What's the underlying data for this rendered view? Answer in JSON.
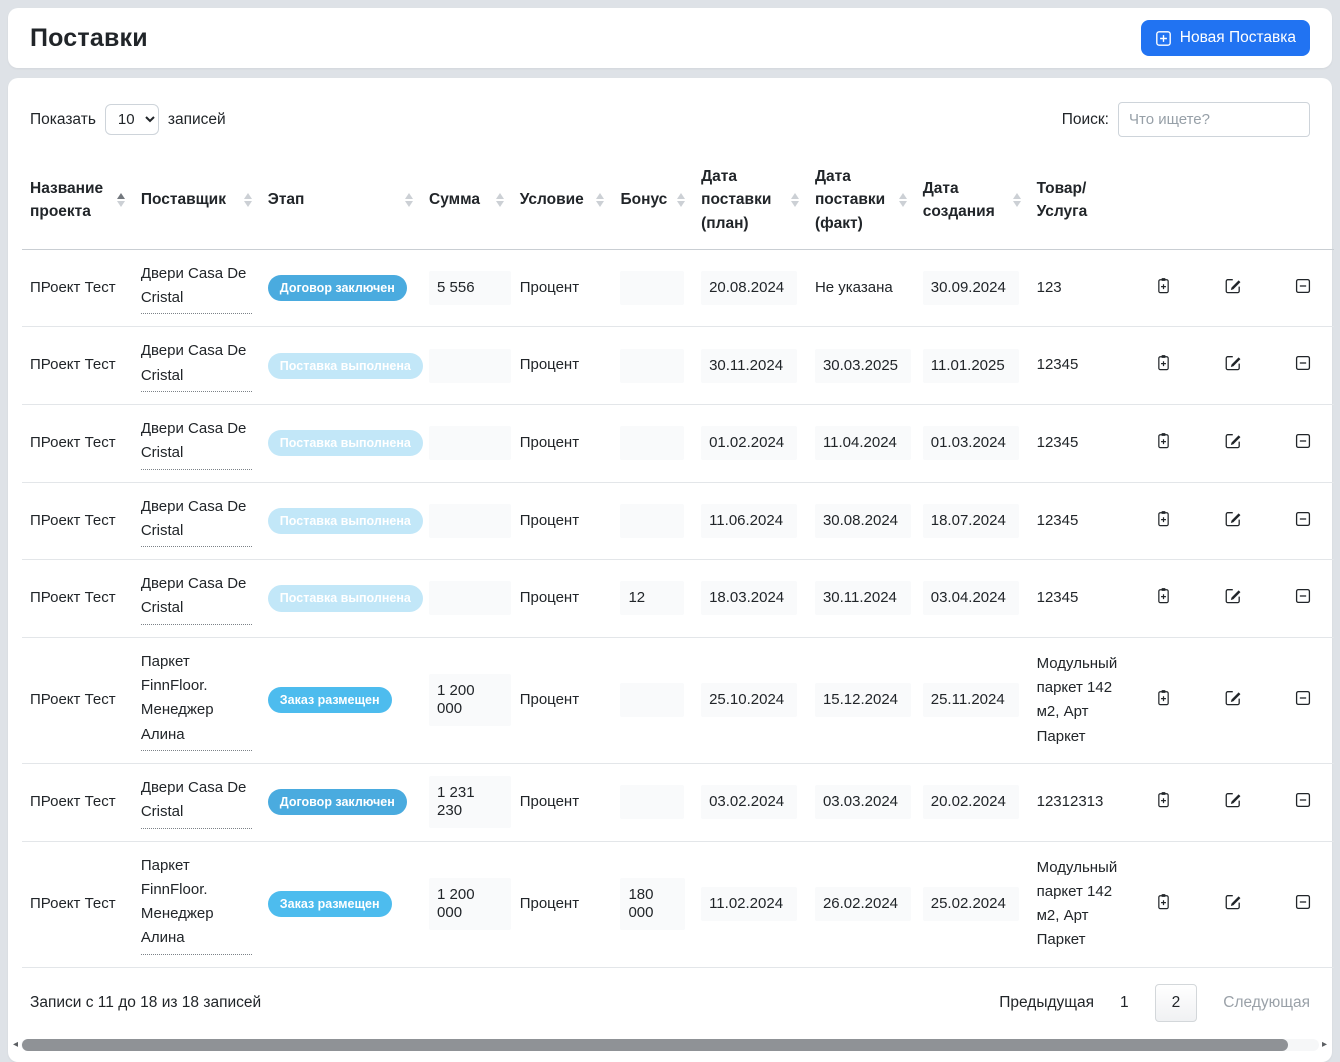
{
  "header": {
    "title": "Поставки",
    "new_button_label": "Новая Поставка"
  },
  "controls": {
    "show_label": "Показать",
    "show_value": "10",
    "show_suffix": "записей",
    "search_label": "Поиск:",
    "search_placeholder": "Что ищете?"
  },
  "colors": {
    "primary_button": "#2173f2",
    "badges": {
      "contract": "#4aabdf",
      "done": "#c2e7f8",
      "placed": "#4dbcee"
    }
  },
  "table": {
    "columns": [
      {
        "label": "Название проекта",
        "sortable": true,
        "sort": "asc"
      },
      {
        "label": "Поставщик",
        "sortable": true,
        "sort": ""
      },
      {
        "label": "Этап",
        "sortable": true,
        "sort": ""
      },
      {
        "label": "Сумма",
        "sortable": true,
        "sort": ""
      },
      {
        "label": "Условие",
        "sortable": true,
        "sort": ""
      },
      {
        "label": "Бонус",
        "sortable": true,
        "sort": ""
      },
      {
        "label": "Дата поставки (план)",
        "sortable": true,
        "sort": ""
      },
      {
        "label": "Дата поставки (факт)",
        "sortable": true,
        "sort": ""
      },
      {
        "label": "Дата создания",
        "sortable": true,
        "sort": ""
      },
      {
        "label": "Товар/ Услуга",
        "sortable": false,
        "sort": ""
      }
    ],
    "rows": [
      {
        "project": "ПРоект Тест",
        "supplier": "Двери Casa De Cristal",
        "stage": "Договор заключен",
        "stage_type": "contract",
        "sum": "5 556",
        "condition": "Процент",
        "bonus": "",
        "date_plan": "20.08.2024",
        "date_fact": "Не указана",
        "date_created": "30.09.2024",
        "product": "123"
      },
      {
        "project": "ПРоект Тест",
        "supplier": "Двери Casa De Cristal",
        "stage": "Поставка выполнена",
        "stage_type": "done",
        "sum": "",
        "condition": "Процент",
        "bonus": "",
        "date_plan": "30.11.2024",
        "date_fact": "30.03.2025",
        "date_created": "11.01.2025",
        "product": "12345"
      },
      {
        "project": "ПРоект Тест",
        "supplier": "Двери Casa De Cristal",
        "stage": "Поставка выполнена",
        "stage_type": "done",
        "sum": "",
        "condition": "Процент",
        "bonus": "",
        "date_plan": "01.02.2024",
        "date_fact": "11.04.2024",
        "date_created": "01.03.2024",
        "product": "12345"
      },
      {
        "project": "ПРоект Тест",
        "supplier": "Двери Casa De Cristal",
        "stage": "Поставка выполнена",
        "stage_type": "done",
        "sum": "",
        "condition": "Процент",
        "bonus": "",
        "date_plan": "11.06.2024",
        "date_fact": "30.08.2024",
        "date_created": "18.07.2024",
        "product": "12345"
      },
      {
        "project": "ПРоект Тест",
        "supplier": "Двери Casa De Cristal",
        "stage": "Поставка выполнена",
        "stage_type": "done",
        "sum": "",
        "condition": "Процент",
        "bonus": "12",
        "date_plan": "18.03.2024",
        "date_fact": "30.11.2024",
        "date_created": "03.04.2024",
        "product": "12345"
      },
      {
        "project": "ПРоект Тест",
        "supplier": "Паркет FinnFloor. Менеджер Алина",
        "stage": "Заказ размещен",
        "stage_type": "placed",
        "sum": "1 200 000",
        "condition": "Процент",
        "bonus": "",
        "date_plan": "25.10.2024",
        "date_fact": "15.12.2024",
        "date_created": "25.11.2024",
        "product": "Модульный паркет 142 м2, Арт Паркет"
      },
      {
        "project": "ПРоект Тест",
        "supplier": "Двери Casa De Cristal",
        "stage": "Договор заключен",
        "stage_type": "contract",
        "sum": "1 231 230",
        "condition": "Процент",
        "bonus": "",
        "date_plan": "03.02.2024",
        "date_fact": "03.03.2024",
        "date_created": "20.02.2024",
        "product": "12312313"
      },
      {
        "project": "ПРоект Тест",
        "supplier": "Паркет FinnFloor. Менеджер Алина",
        "stage": "Заказ размещен",
        "stage_type": "placed",
        "sum": "1 200 000",
        "condition": "Процент",
        "bonus": "180 000",
        "date_plan": "11.02.2024",
        "date_fact": "26.02.2024",
        "date_created": "25.02.2024",
        "product": "Модульный паркет 142 м2, Арт Паркет"
      }
    ],
    "empty_date_value": "Не указана",
    "action_icons": [
      "clipboard-plus-icon",
      "pencil-square-icon",
      "minus-square-icon"
    ]
  },
  "footer": {
    "info": "Записи с 11 до 18 из 18 записей",
    "prev_label": "Предыдущая",
    "pages": [
      "1",
      "2"
    ],
    "active_page": "2",
    "next_label": "Следующая",
    "next_disabled": true
  }
}
